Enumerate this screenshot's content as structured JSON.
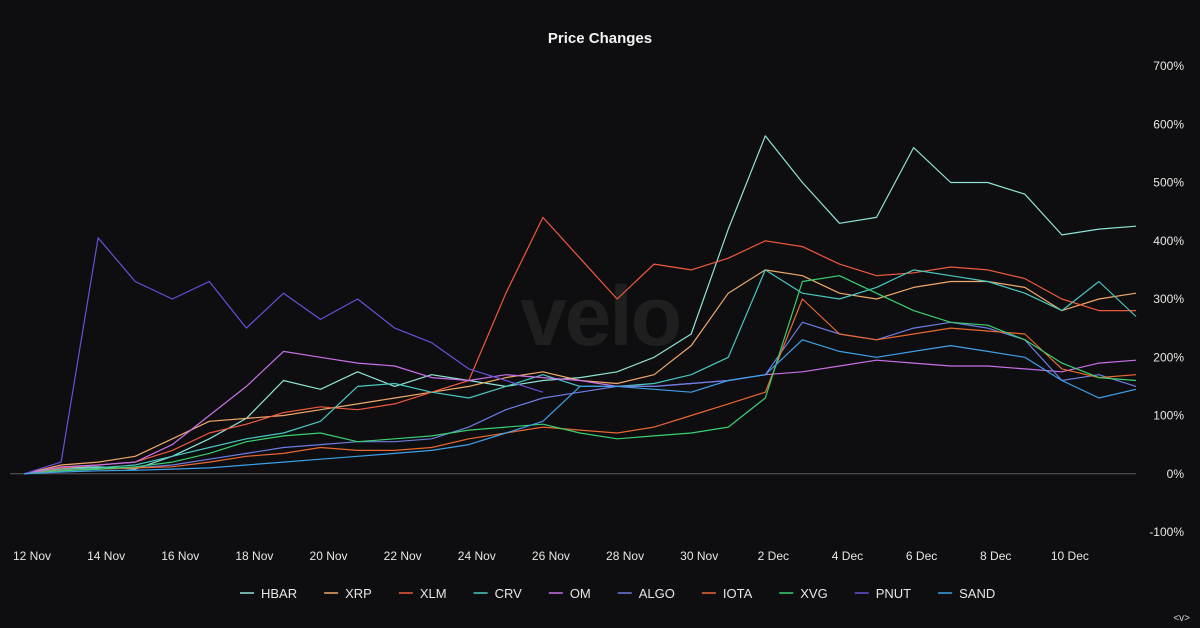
{
  "watermark": "velo",
  "corner_label": "<v>",
  "chart_data": {
    "type": "line",
    "title": "Price Changes",
    "xlabel": "",
    "ylabel": "",
    "x_range": [
      0,
      30
    ],
    "ylim": [
      -100,
      700
    ],
    "y_ticks": [
      700,
      600,
      500,
      400,
      300,
      200,
      100,
      0,
      -100
    ],
    "y_tick_labels": [
      "700%",
      "600%",
      "500%",
      "400%",
      "300%",
      "200%",
      "100%",
      "0%",
      "-100%"
    ],
    "x_ticks": [
      0,
      2,
      4,
      6,
      8,
      10,
      12,
      14,
      16,
      18,
      20,
      22,
      24,
      26,
      28
    ],
    "x_tick_labels": [
      "12 Nov",
      "14 Nov",
      "16 Nov",
      "18 Nov",
      "20 Nov",
      "22 Nov",
      "24 Nov",
      "26 Nov",
      "28 Nov",
      "30 Nov",
      "2 Dec",
      "4 Dec",
      "6 Dec",
      "8 Dec",
      "10 Dec"
    ],
    "legend_position": "bottom",
    "series": [
      {
        "name": "HBAR",
        "color": "#8fe3d6",
        "x": [
          0,
          1,
          2,
          3,
          4,
          5,
          6,
          7,
          8,
          9,
          10,
          11,
          12,
          13,
          14,
          15,
          16,
          17,
          18,
          19,
          20,
          21,
          22,
          23,
          24,
          25,
          26,
          27,
          28,
          29,
          30
        ],
        "values": [
          0,
          10,
          12,
          8,
          30,
          60,
          95,
          160,
          145,
          175,
          150,
          170,
          160,
          150,
          160,
          165,
          175,
          200,
          240,
          420,
          580,
          500,
          430,
          440,
          560,
          500,
          500,
          480,
          410,
          420,
          425
        ]
      },
      {
        "name": "XRP",
        "color": "#f0a868",
        "x": [
          0,
          1,
          2,
          3,
          4,
          5,
          6,
          7,
          8,
          9,
          10,
          11,
          12,
          13,
          14,
          15,
          16,
          17,
          18,
          19,
          20,
          21,
          22,
          23,
          24,
          25,
          26,
          27,
          28,
          29,
          30
        ],
        "values": [
          0,
          15,
          20,
          30,
          60,
          90,
          95,
          100,
          110,
          120,
          130,
          140,
          150,
          165,
          175,
          160,
          155,
          170,
          220,
          310,
          350,
          340,
          310,
          300,
          320,
          330,
          330,
          320,
          280,
          300,
          310
        ]
      },
      {
        "name": "XLM",
        "color": "#f05a3c",
        "x": [
          0,
          1,
          2,
          3,
          4,
          5,
          6,
          7,
          8,
          9,
          10,
          11,
          12,
          13,
          14,
          15,
          16,
          17,
          18,
          19,
          20,
          21,
          22,
          23,
          24,
          25,
          26,
          27,
          28,
          29,
          30
        ],
        "values": [
          0,
          10,
          15,
          20,
          40,
          70,
          85,
          105,
          115,
          110,
          120,
          140,
          160,
          310,
          440,
          370,
          300,
          360,
          350,
          370,
          400,
          390,
          360,
          340,
          345,
          355,
          350,
          335,
          300,
          280,
          280
        ]
      },
      {
        "name": "CRV",
        "color": "#48c8c0",
        "x": [
          0,
          1,
          2,
          3,
          4,
          5,
          6,
          7,
          8,
          9,
          10,
          11,
          12,
          13,
          14,
          15,
          16,
          17,
          18,
          19,
          20,
          21,
          22,
          23,
          24,
          25,
          26,
          27,
          28,
          29,
          30
        ],
        "values": [
          0,
          8,
          10,
          15,
          30,
          45,
          60,
          70,
          90,
          150,
          155,
          140,
          130,
          150,
          170,
          150,
          150,
          155,
          170,
          200,
          350,
          310,
          300,
          320,
          350,
          340,
          330,
          310,
          280,
          330,
          270
        ]
      },
      {
        "name": "OM",
        "color": "#c870e8",
        "x": [
          0,
          1,
          2,
          3,
          4,
          5,
          6,
          7,
          8,
          9,
          10,
          11,
          12,
          13,
          14,
          15,
          16,
          17,
          18,
          19,
          20,
          21,
          22,
          23,
          24,
          25,
          26,
          27,
          28,
          29,
          30
        ],
        "values": [
          0,
          12,
          15,
          20,
          50,
          100,
          150,
          210,
          200,
          190,
          185,
          165,
          160,
          170,
          165,
          160,
          150,
          150,
          155,
          160,
          170,
          175,
          185,
          195,
          190,
          185,
          185,
          180,
          175,
          190,
          195
        ]
      },
      {
        "name": "ALGO",
        "color": "#6c7ce0",
        "x": [
          0,
          1,
          2,
          3,
          4,
          5,
          6,
          7,
          8,
          9,
          10,
          11,
          12,
          13,
          14,
          15,
          16,
          17,
          18,
          19,
          20,
          21,
          22,
          23,
          24,
          25,
          26,
          27,
          28,
          29,
          30
        ],
        "values": [
          0,
          5,
          8,
          10,
          15,
          25,
          35,
          45,
          50,
          55,
          55,
          60,
          80,
          110,
          130,
          140,
          150,
          150,
          155,
          160,
          170,
          260,
          240,
          230,
          250,
          260,
          250,
          230,
          160,
          170,
          150
        ]
      },
      {
        "name": "IOTA",
        "color": "#e86830",
        "x": [
          0,
          1,
          2,
          3,
          4,
          5,
          6,
          7,
          8,
          9,
          10,
          11,
          12,
          13,
          14,
          15,
          16,
          17,
          18,
          19,
          20,
          21,
          22,
          23,
          24,
          25,
          26,
          27,
          28,
          29,
          30
        ],
        "values": [
          0,
          6,
          8,
          10,
          12,
          20,
          30,
          35,
          45,
          40,
          40,
          45,
          60,
          70,
          80,
          75,
          70,
          80,
          100,
          120,
          140,
          300,
          240,
          230,
          240,
          250,
          245,
          240,
          180,
          165,
          170
        ]
      },
      {
        "name": "XVG",
        "color": "#3ad070",
        "x": [
          0,
          1,
          2,
          3,
          4,
          5,
          6,
          7,
          8,
          9,
          10,
          11,
          12,
          13,
          14,
          15,
          16,
          17,
          18,
          19,
          20,
          21,
          22,
          23,
          24,
          25,
          26,
          27,
          28,
          29,
          30
        ],
        "values": [
          0,
          5,
          8,
          12,
          20,
          35,
          55,
          65,
          70,
          55,
          60,
          65,
          75,
          80,
          85,
          70,
          60,
          65,
          70,
          80,
          130,
          330,
          340,
          310,
          280,
          260,
          255,
          230,
          190,
          165,
          160
        ]
      },
      {
        "name": "PNUT",
        "color": "#6a4fd8",
        "x": [
          0,
          1,
          2,
          3,
          4,
          5,
          6,
          7,
          8,
          9,
          10,
          11,
          12,
          13,
          14
        ],
        "values": [
          0,
          20,
          405,
          330,
          300,
          330,
          250,
          310,
          265,
          300,
          250,
          225,
          180,
          160,
          140
        ]
      },
      {
        "name": "SAND",
        "color": "#3ea0e8",
        "x": [
          0,
          1,
          2,
          3,
          4,
          5,
          6,
          7,
          8,
          9,
          10,
          11,
          12,
          13,
          14,
          15,
          16,
          17,
          18,
          19,
          20,
          21,
          22,
          23,
          24,
          25,
          26,
          27,
          28,
          29,
          30
        ],
        "values": [
          0,
          3,
          5,
          6,
          8,
          10,
          15,
          20,
          25,
          30,
          35,
          40,
          50,
          70,
          90,
          150,
          150,
          145,
          140,
          160,
          170,
          230,
          210,
          200,
          210,
          220,
          210,
          200,
          160,
          130,
          145
        ]
      }
    ]
  }
}
